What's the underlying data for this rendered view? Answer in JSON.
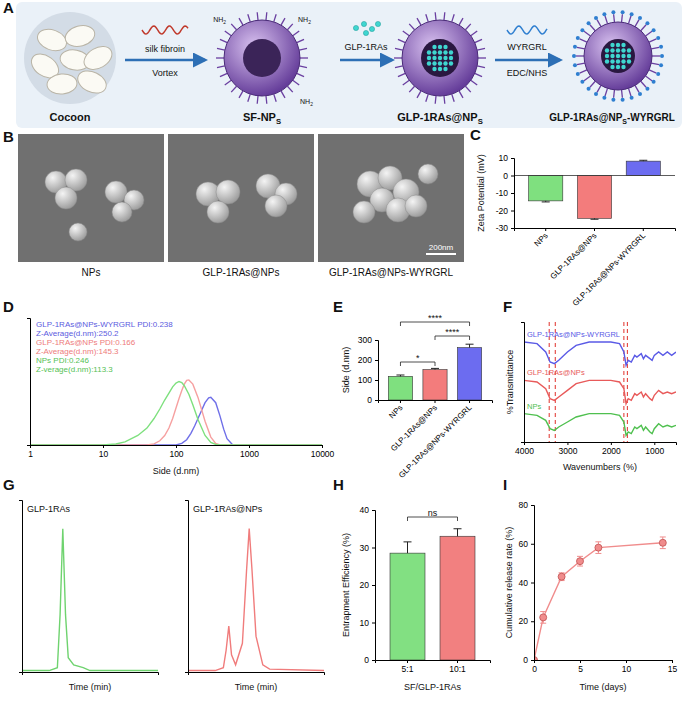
{
  "schematic": {
    "panel": "A",
    "cocoon": "Cocoon",
    "silk_fibroin": "silk fibroin",
    "vortex": "Vortex",
    "sf_nps": {
      "main": "SF-NP",
      "sub": "S"
    },
    "amine": {
      "main": "NH",
      "sub": "2"
    },
    "cargo": "GLP-1RAs",
    "loaded": {
      "main": "GLP-1RAs@NP",
      "sub": "S"
    },
    "peptide": "WYRGRL",
    "coupling": "EDC/NHS",
    "final": {
      "main": "GLP-1RAs@NP",
      "sub": "S",
      "suffix": "-WYRGRL"
    }
  },
  "micrographs": {
    "panel": "B",
    "labels": [
      "NPs",
      "GLP-1RAs@NPs",
      "GLP-1RAs@NPs-WYRGRL"
    ],
    "scale_bar": "200nm"
  },
  "chart_data": [
    {
      "panel": "C",
      "type": "bar",
      "categories": [
        "NPs",
        "GLP-1RAs@NPs",
        "GLP-1RAs@NPs-WYRGRL"
      ],
      "values": [
        -14.5,
        -24.5,
        8.2
      ],
      "errors": [
        0.6,
        0.5,
        0.5
      ],
      "colors": [
        "#7fe07f",
        "#f37c7c",
        "#6c6cf0"
      ],
      "ylabel": "Zeta Potential (mV)",
      "ylim": [
        -30,
        10
      ],
      "yticks": [
        -30,
        -20,
        -10,
        0,
        10
      ]
    },
    {
      "panel": "D",
      "type": "line",
      "xlabel": "Side (d.nm)",
      "log": "x",
      "xlim": [
        1,
        10000
      ],
      "xticks": [
        1,
        10,
        100,
        1000,
        10000
      ],
      "ylim": [
        0,
        24
      ],
      "tick_labels": "x",
      "series": [
        {
          "color": "#6f6fe8",
          "x": [
            1,
            100,
            120,
            140,
            160,
            180,
            200,
            220,
            250,
            280,
            300,
            350,
            400,
            450,
            500,
            600,
            10000
          ],
          "values": [
            0,
            0,
            0.3,
            1,
            2.2,
            3.6,
            5,
            6.3,
            8,
            8.9,
            9,
            8,
            5.5,
            3,
            1.2,
            0,
            0
          ]
        },
        {
          "color": "#f6a0a0",
          "x": [
            1,
            40,
            50,
            60,
            70,
            80,
            90,
            100,
            110,
            120,
            130,
            140,
            150,
            170,
            200,
            250,
            300,
            350,
            400,
            10000
          ],
          "values": [
            0,
            0,
            0.2,
            0.8,
            1.8,
            3.2,
            5,
            7,
            8.8,
            10.3,
            11.5,
            12.2,
            12.3,
            11.5,
            9,
            4.5,
            1.5,
            0.3,
            0,
            0
          ]
        },
        {
          "color": "#7ee07e",
          "x": [
            1,
            10,
            15,
            20,
            30,
            40,
            50,
            60,
            70,
            80,
            90,
            100,
            110,
            120,
            130,
            150,
            170,
            200,
            250,
            300,
            350,
            400,
            10000
          ],
          "values": [
            0,
            0,
            0.2,
            0.6,
            1.8,
            3.2,
            5,
            6.8,
            8.5,
            9.8,
            11,
            11.7,
            12,
            11.8,
            11.2,
            9.6,
            7.6,
            4.8,
            1.8,
            0.5,
            0.1,
            0,
            0
          ]
        }
      ],
      "annotations": [
        {
          "text": "GLP-1RAs@NPs-WYRGRL PDI:0.238",
          "color": "#5b5be0"
        },
        {
          "text": "Z-Average(d.nm):250.2",
          "color": "#5b5be0"
        },
        {
          "text": "GLP-1RAs@NPs PDI:0.166",
          "color": "#ee7b7b"
        },
        {
          "text": "Z-Average(d.nm):145.3",
          "color": "#ee7b7b"
        },
        {
          "text": "NPs PDI:0.246",
          "color": "#55bf55"
        },
        {
          "text": "Z-verage(d.nm):113.3",
          "color": "#55bf55"
        }
      ]
    },
    {
      "panel": "E",
      "type": "bar",
      "categories": [
        "NPs",
        "GLP-1RAs@NPs",
        "GLP-1RAs@NPs-WYRGRL"
      ],
      "values": [
        118,
        152,
        262
      ],
      "errors": [
        7,
        6,
        17
      ],
      "colors": [
        "#7fe07f",
        "#f37c7c",
        "#6c6cf0"
      ],
      "ylabel": "Side (d.nm)",
      "ylim": [
        0,
        300
      ],
      "yticks": [
        0,
        100,
        200,
        300
      ],
      "significance": [
        {
          "pair": [
            "NPs",
            "GLP-1RAs@NPs"
          ],
          "label": "*"
        },
        {
          "pair": [
            "NPs",
            "GLP-1RAs@NPs-WYRGRL"
          ],
          "label": "****"
        },
        {
          "pair": [
            "GLP-1RAs@NPs",
            "GLP-1RAs@NPs-WYRGRL"
          ],
          "label": "****"
        }
      ]
    },
    {
      "panel": "F",
      "type": "line",
      "xlabel": "Wavenumbers (%)",
      "ylabel": "%Transmittance",
      "xlim": [
        4000,
        500
      ],
      "xticks": [
        4000,
        3000,
        2000,
        1000
      ],
      "ylim": [
        0,
        36
      ],
      "tick_labels": "x",
      "reference_lines": [
        3420,
        3280,
        1700,
        1620
      ],
      "x": [
        4000,
        3700,
        3500,
        3400,
        3300,
        3200,
        3000,
        2800,
        2500,
        2000,
        1800,
        1700,
        1650,
        1600,
        1530,
        1450,
        1400,
        1300,
        1250,
        1200,
        1100,
        1050,
        1000,
        900,
        800,
        700,
        600,
        500
      ],
      "series": [
        {
          "name": "GLP-1RAs@NPs-WYRGRL",
          "color": "#5a5ae6",
          "values": [
            30,
            29.5,
            27,
            24,
            23.5,
            24.5,
            27,
            29,
            30,
            30,
            29.5,
            27,
            23,
            24.5,
            24,
            26,
            25.5,
            26.5,
            25,
            26,
            25,
            24.5,
            26,
            27,
            26,
            27,
            26,
            27
          ]
        },
        {
          "name": "GLP-1RAs@NPs",
          "color": "#e85a5a",
          "values": [
            18.5,
            18,
            16,
            13,
            12.5,
            13.5,
            15.5,
            17.5,
            18.5,
            18.5,
            18,
            16,
            11.5,
            13,
            12.5,
            14.5,
            14,
            15,
            13.5,
            14.5,
            13,
            12.5,
            14,
            15.5,
            14.5,
            15,
            14.5,
            15
          ]
        },
        {
          "name": "NPs",
          "color": "#4fc04f",
          "values": [
            8.5,
            8,
            6.5,
            4,
            3.5,
            4.5,
            6,
            7.5,
            8.5,
            8.5,
            8,
            6,
            2,
            3,
            2.5,
            4.5,
            4,
            5,
            3.5,
            4.5,
            3,
            2.5,
            4,
            5.5,
            4.5,
            5,
            4.5,
            5
          ]
        }
      ]
    },
    {
      "panel": "G",
      "type": "line",
      "title": "GLP-1RAs",
      "xlabel": "Time (min)",
      "xlim": [
        0,
        10
      ],
      "ylim": [
        0,
        120
      ],
      "tick_labels": false,
      "color": "#6fd36f",
      "x": [
        0,
        2,
        2.6,
        2.8,
        3,
        3.2,
        3.4,
        3.8,
        4.5,
        5,
        10
      ],
      "values": [
        1,
        1,
        3,
        40,
        100,
        40,
        10,
        5,
        3,
        1,
        1
      ]
    },
    {
      "type": "line",
      "title": "GLP-1RAs@NPs",
      "xlabel": "Time (min)",
      "xlim": [
        0,
        10
      ],
      "ylim": [
        0,
        120
      ],
      "tick_labels": false,
      "color": "#f07c7c",
      "x": [
        0,
        2,
        2.6,
        2.8,
        3,
        3.2,
        3.5,
        4,
        4.3,
        4.5,
        4.7,
        5,
        5.5,
        6,
        10
      ],
      "values": [
        1,
        1,
        3,
        15,
        32,
        12,
        5,
        20,
        70,
        100,
        72,
        25,
        5,
        2,
        1
      ]
    },
    {
      "panel": "H",
      "type": "bar",
      "categories": [
        "5:1",
        "10:1"
      ],
      "values": [
        28.5,
        33
      ],
      "errors": [
        3,
        2
      ],
      "colors": [
        "#82e082",
        "#f28080"
      ],
      "xlabel": "SF/GLP-1RAs",
      "ylabel": "Entrapment Efficiency (%)",
      "ylim": [
        0,
        40
      ],
      "yticks": [
        0,
        10,
        20,
        30,
        40
      ],
      "significance": [
        {
          "pair": [
            "5:1",
            "10:1"
          ],
          "label": "ns"
        }
      ]
    },
    {
      "panel": "I",
      "type": "line",
      "marker": "circle",
      "color": "#f08c8c",
      "x": [
        0,
        1,
        3,
        5,
        7,
        14
      ],
      "values": [
        0,
        22,
        43,
        51,
        58,
        60.5
      ],
      "errors": [
        0,
        3,
        2,
        2.5,
        3,
        3
      ],
      "xlabel": "Time (days)",
      "ylabel": "Cumulative release rate (%)",
      "xlim": [
        0,
        15
      ],
      "xticks": [
        0,
        5,
        10,
        15
      ],
      "ylim": [
        0,
        80
      ],
      "yticks": [
        0,
        20,
        40,
        60,
        80
      ]
    }
  ]
}
